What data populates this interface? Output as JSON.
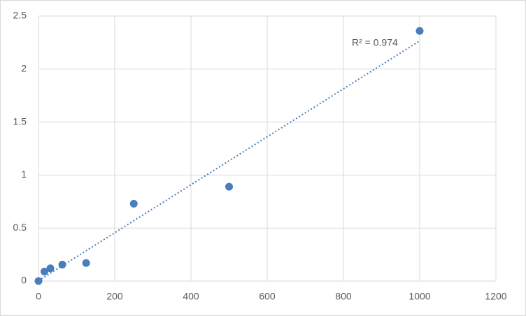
{
  "chart_data": {
    "type": "scatter",
    "x": [
      0,
      15.6,
      31.25,
      62.5,
      125,
      250,
      500,
      1000
    ],
    "values": [
      0,
      0.09,
      0.12,
      0.155,
      0.17,
      0.73,
      0.89,
      2.36
    ],
    "color": "#4a7ebb",
    "xlim": [
      0,
      1200
    ],
    "xticks": [
      0,
      200,
      400,
      600,
      800,
      1000,
      1200
    ],
    "ylim": [
      0,
      2.5
    ],
    "yticks": [
      0,
      0.5,
      1,
      1.5,
      2,
      2.5
    ],
    "grid": true,
    "trendline": "linear",
    "annotation": "R² = 0.974"
  }
}
